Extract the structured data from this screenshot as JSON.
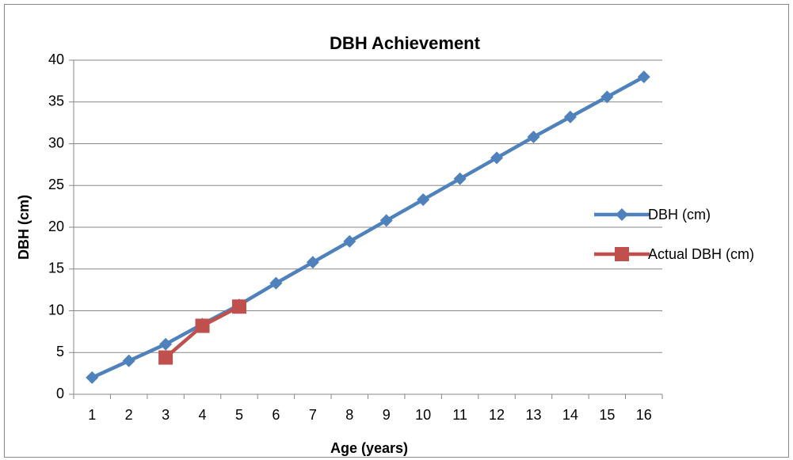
{
  "chart_data": {
    "type": "line",
    "title": "DBH Achievement",
    "x_label": "Age (years)",
    "y_label": "DBH (cm)",
    "categories": [
      1,
      2,
      3,
      4,
      5,
      6,
      7,
      8,
      9,
      10,
      11,
      12,
      13,
      14,
      15,
      16
    ],
    "series": [
      {
        "name": "DBH (cm)",
        "color": "#4f81bd",
        "marker": "diamond",
        "values": [
          2.0,
          4.0,
          6.0,
          8.4,
          10.7,
          13.3,
          15.8,
          18.3,
          20.8,
          23.3,
          25.8,
          28.3,
          30.8,
          33.2,
          35.6,
          38.0
        ]
      },
      {
        "name": "Actual DBH (cm)",
        "color": "#c0504d",
        "marker": "square",
        "values": [
          null,
          null,
          4.4,
          8.2,
          10.5,
          null,
          null,
          null,
          null,
          null,
          null,
          null,
          null,
          null,
          null,
          null
        ]
      }
    ],
    "ylim": [
      0,
      40
    ],
    "yticks": [
      0,
      5,
      10,
      15,
      20,
      25,
      30,
      35,
      40
    ],
    "grid": true,
    "legend": "right"
  }
}
